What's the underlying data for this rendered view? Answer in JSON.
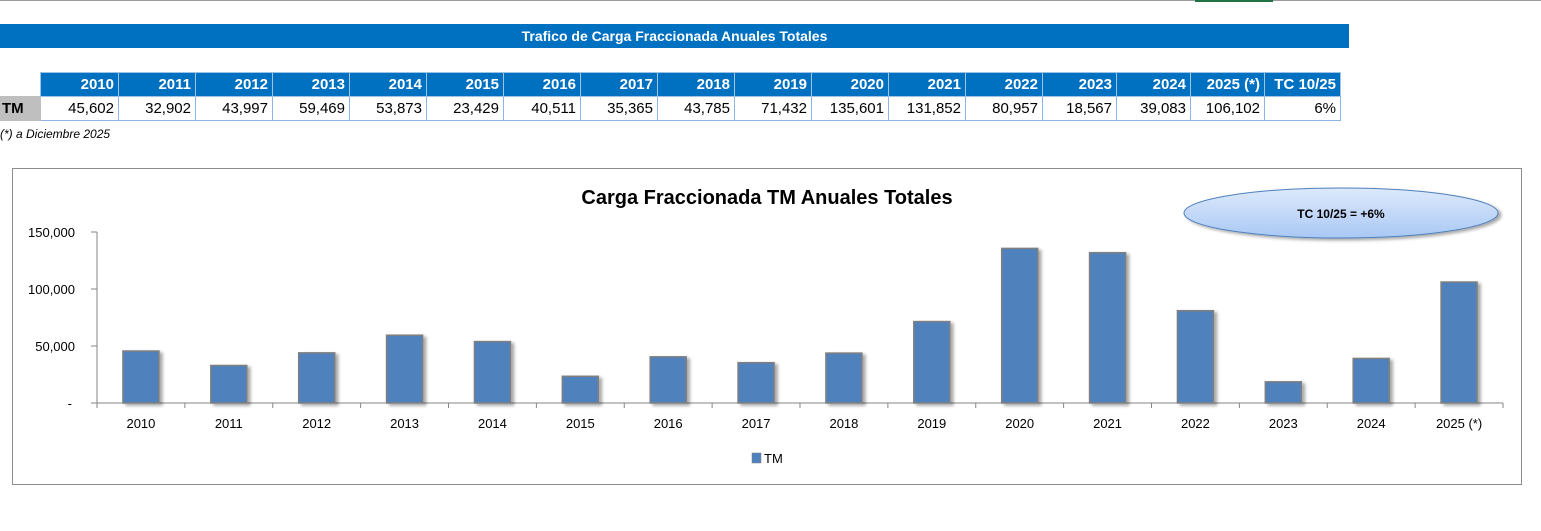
{
  "sheet": {
    "title": "Trafico de Carga Fraccionada Anuales Totales",
    "footnote": "(*) a Diciembre 2025"
  },
  "table": {
    "headers": [
      "2010",
      "2011",
      "2012",
      "2013",
      "2014",
      "2015",
      "2016",
      "2017",
      "2018",
      "2019",
      "2020",
      "2021",
      "2022",
      "2023",
      "2024",
      "2025 (*)",
      "TC 10/25"
    ],
    "row_label": "TM",
    "values": [
      "45,602",
      "32,902",
      "43,997",
      "59,469",
      "53,873",
      "23,429",
      "40,511",
      "35,365",
      "43,785",
      "71,432",
      "135,601",
      "131,852",
      "80,957",
      "18,567",
      "39,083",
      "106,102",
      "6%"
    ]
  },
  "colors": {
    "header_blue": "#0070c0",
    "bar_fill": "#4f81bd",
    "bar_border": "#7f7f7f"
  },
  "chart_data": {
    "type": "bar",
    "title": "Carga Fraccionada TM Anuales Totales",
    "categories": [
      "2010",
      "2011",
      "2012",
      "2013",
      "2014",
      "2015",
      "2016",
      "2017",
      "2018",
      "2019",
      "2020",
      "2021",
      "2022",
      "2023",
      "2024",
      "2025 (*)"
    ],
    "series": [
      {
        "name": "TM",
        "values": [
          45602,
          32902,
          43997,
          59469,
          53873,
          23429,
          40511,
          35365,
          43785,
          71432,
          135601,
          131852,
          80957,
          18567,
          39083,
          106102
        ]
      }
    ],
    "y_ticks": [
      0,
      50000,
      100000,
      150000
    ],
    "y_tick_labels": [
      "-",
      "50,000",
      "100,000",
      "150,000"
    ],
    "ylim": [
      0,
      150000
    ],
    "xlabel": "",
    "ylabel": "",
    "grid": false,
    "legend": {
      "position": "bottom",
      "entries": [
        "TM"
      ]
    },
    "annotation": "TC 10/25 = +6%"
  }
}
